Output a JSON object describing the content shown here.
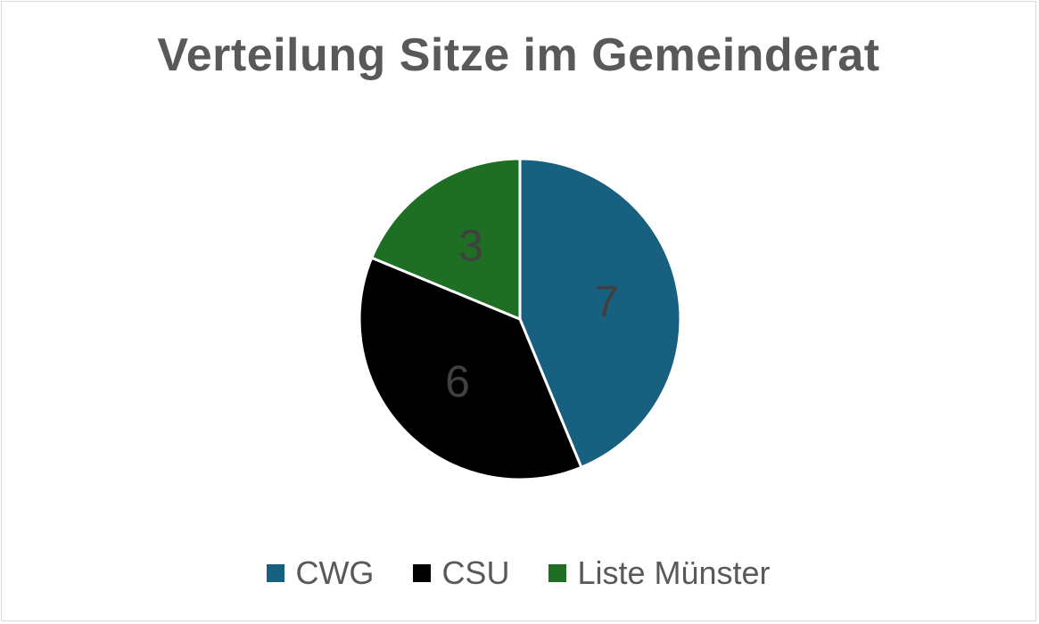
{
  "chart_data": {
    "type": "pie",
    "title": "Verteilung Sitze im Gemeinderat",
    "categories": [
      "CWG",
      "CSU",
      "Liste Münster"
    ],
    "values": [
      7,
      6,
      3
    ],
    "data_labels": [
      "7",
      "6",
      "3"
    ],
    "colors": [
      "#17607f",
      "#000000",
      "#1e6e23"
    ],
    "label_color": "#404040",
    "legend_position": "bottom"
  }
}
